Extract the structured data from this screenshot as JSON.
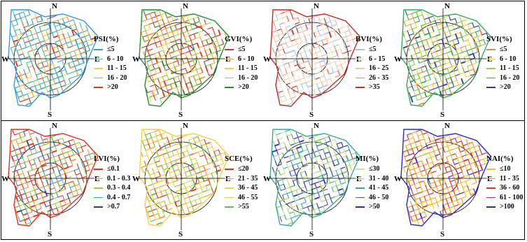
{
  "compass": {
    "north": "N",
    "south": "S",
    "east": "E",
    "west": "W"
  },
  "panels": [
    {
      "title": "PSI(%)",
      "legend": [
        {
          "label": "≤5",
          "color": "#3a9bd6"
        },
        {
          "label": "6 - 10",
          "color": "#5ab5a6"
        },
        {
          "label": "11 - 15",
          "color": "#f2d04a"
        },
        {
          "label": "16 - 20",
          "color": "#f19a3a"
        },
        {
          "label": ">20",
          "color": "#e03020"
        }
      ]
    },
    {
      "title": "GVI(%)",
      "legend": [
        {
          "label": "≤5",
          "color": "#e03020"
        },
        {
          "label": "6 - 10",
          "color": "#f19a3a"
        },
        {
          "label": "11 - 15",
          "color": "#f2d04a"
        },
        {
          "label": "16 - 20",
          "color": "#9acd4a"
        },
        {
          "label": ">20",
          "color": "#2a8a30"
        }
      ]
    },
    {
      "title": "BVI(%)",
      "legend": [
        {
          "label": "≤5",
          "color": "#a8c8e0"
        },
        {
          "label": "6 - 15",
          "color": "#f0e2c8"
        },
        {
          "label": "16 - 25",
          "color": "#f5c8a8"
        },
        {
          "label": "26 - 35",
          "color": "#e88878"
        },
        {
          "label": ">35",
          "color": "#c82828"
        }
      ]
    },
    {
      "title": "SVI(%)",
      "legend": [
        {
          "label": "≤5",
          "color": "#f08a30"
        },
        {
          "label": "6 - 10",
          "color": "#f2d04a"
        },
        {
          "label": "11 - 15",
          "color": "#9acd4a"
        },
        {
          "label": "16 - 20",
          "color": "#3aa860"
        },
        {
          "label": ">20",
          "color": "#2a3a9a"
        }
      ]
    },
    {
      "title": "LVI(%)",
      "legend": [
        {
          "label": "≤0.1",
          "color": "#e03020"
        },
        {
          "label": "0.1 - 0.3",
          "color": "#f19a3a"
        },
        {
          "label": "0.3 - 0.4",
          "color": "#9acd4a"
        },
        {
          "label": "0.4 - 0.7",
          "color": "#3a9bd6"
        },
        {
          "label": ">0.7",
          "color": "#2a3a9a"
        }
      ]
    },
    {
      "title": "SCE(%)",
      "legend": [
        {
          "label": "≤20",
          "color": "#e03020"
        },
        {
          "label": "21 - 35",
          "color": "#f19a3a"
        },
        {
          "label": "36 - 45",
          "color": "#f2d04a"
        },
        {
          "label": "46 - 55",
          "color": "#b8d848"
        },
        {
          "label": ">55",
          "color": "#6ab84a"
        }
      ]
    },
    {
      "title": "MI(%)",
      "legend": [
        {
          "label": "≤30",
          "color": "#c8e0a0"
        },
        {
          "label": "31 - 40",
          "color": "#a8d868"
        },
        {
          "label": "41 - 45",
          "color": "#3aa8a0"
        },
        {
          "label": "46 - 50",
          "color": "#6a4ab8"
        },
        {
          "label": ">50",
          "color": "#2a2ac8"
        }
      ]
    },
    {
      "title": "NAI(%)",
      "legend": [
        {
          "label": "≤10",
          "color": "#f2c020"
        },
        {
          "label": "11 - 35",
          "color": "#f19a3a"
        },
        {
          "label": "36 - 60",
          "color": "#e03020"
        },
        {
          "label": "61 - 100",
          "color": "#b82878"
        },
        {
          "label": ">100",
          "color": "#2a2ac8"
        }
      ]
    }
  ]
}
